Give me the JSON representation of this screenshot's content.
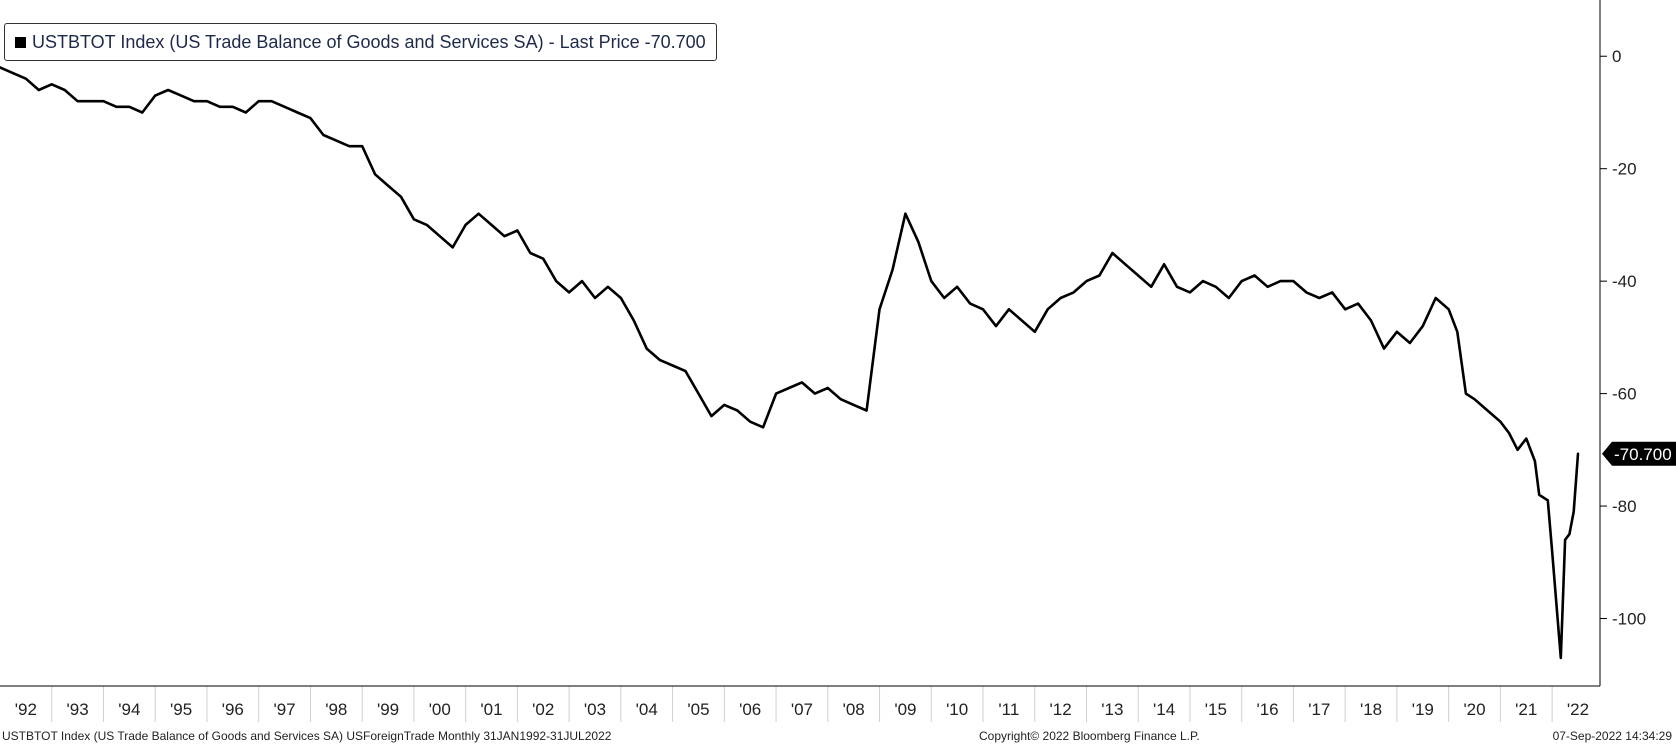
{
  "legend": {
    "series_label": "USTBTOT Index (US Trade Balance of Goods and Services SA) - Last Price -70.700"
  },
  "footer": {
    "left": "USTBTOT Index (US Trade Balance of Goods and Services SA) USForeignTrade  Monthly 31JAN1992-31JUL2022",
    "center": "Copyright© 2022 Bloomberg Finance L.P.",
    "right": "07-Sep-2022 14:34:29"
  },
  "chart_data": {
    "type": "line",
    "title": "",
    "xlabel": "",
    "ylabel": "",
    "ylim": [
      -112,
      10
    ],
    "yticks": [
      0,
      -20,
      -40,
      -60,
      -80,
      -100
    ],
    "ytick_labels": [
      "0",
      "-20",
      "-40",
      "-60",
      "-80",
      "-100"
    ],
    "x_start": "1992-01",
    "x_end": "2022-07",
    "xtick_labels": [
      "'92",
      "'93",
      "'94",
      "'95",
      "'96",
      "'97",
      "'98",
      "'99",
      "'00",
      "'01",
      "'02",
      "'03",
      "'04",
      "'05",
      "'06",
      "'07",
      "'08",
      "'09",
      "'10",
      "'11",
      "'12",
      "'13",
      "'14",
      "'15",
      "'16",
      "'17",
      "'18",
      "'19",
      "'20",
      "'21",
      "'22"
    ],
    "last_value_label": "-70.700",
    "line_color": "#000000",
    "grid": false,
    "series": [
      {
        "name": "USTBTOT Index",
        "x": [
          "1992-01",
          "1992-04",
          "1992-07",
          "1992-10",
          "1993-01",
          "1993-04",
          "1993-07",
          "1993-10",
          "1994-01",
          "1994-04",
          "1994-07",
          "1994-10",
          "1995-01",
          "1995-04",
          "1995-07",
          "1995-10",
          "1996-01",
          "1996-04",
          "1996-07",
          "1996-10",
          "1997-01",
          "1997-04",
          "1997-07",
          "1997-10",
          "1998-01",
          "1998-04",
          "1998-07",
          "1998-10",
          "1999-01",
          "1999-04",
          "1999-07",
          "1999-10",
          "2000-01",
          "2000-04",
          "2000-07",
          "2000-10",
          "2001-01",
          "2001-04",
          "2001-07",
          "2001-10",
          "2002-01",
          "2002-04",
          "2002-07",
          "2002-10",
          "2003-01",
          "2003-04",
          "2003-07",
          "2003-10",
          "2004-01",
          "2004-04",
          "2004-07",
          "2004-10",
          "2005-01",
          "2005-04",
          "2005-07",
          "2005-10",
          "2006-01",
          "2006-04",
          "2006-07",
          "2006-10",
          "2007-01",
          "2007-04",
          "2007-07",
          "2007-10",
          "2008-01",
          "2008-04",
          "2008-07",
          "2008-10",
          "2009-01",
          "2009-04",
          "2009-07",
          "2009-10",
          "2010-01",
          "2010-04",
          "2010-07",
          "2010-10",
          "2011-01",
          "2011-04",
          "2011-07",
          "2011-10",
          "2012-01",
          "2012-04",
          "2012-07",
          "2012-10",
          "2013-01",
          "2013-04",
          "2013-07",
          "2013-10",
          "2014-01",
          "2014-04",
          "2014-07",
          "2014-10",
          "2015-01",
          "2015-04",
          "2015-07",
          "2015-10",
          "2016-01",
          "2016-04",
          "2016-07",
          "2016-10",
          "2017-01",
          "2017-04",
          "2017-07",
          "2017-10",
          "2018-01",
          "2018-04",
          "2018-07",
          "2018-10",
          "2019-01",
          "2019-04",
          "2019-07",
          "2019-10",
          "2020-01",
          "2020-03",
          "2020-05",
          "2020-07",
          "2020-10",
          "2021-01",
          "2021-03",
          "2021-05",
          "2021-07",
          "2021-09",
          "2021-10",
          "2021-12",
          "2022-01",
          "2022-03",
          "2022-04",
          "2022-05",
          "2022-06",
          "2022-07"
        ],
        "values": [
          -2,
          -3,
          -4,
          -6,
          -5,
          -6,
          -8,
          -8,
          -8,
          -9,
          -9,
          -10,
          -7,
          -6,
          -7,
          -8,
          -8,
          -9,
          -9,
          -10,
          -8,
          -8,
          -9,
          -10,
          -11,
          -14,
          -15,
          -16,
          -16,
          -21,
          -23,
          -25,
          -29,
          -30,
          -32,
          -34,
          -30,
          -28,
          -30,
          -32,
          -31,
          -35,
          -36,
          -40,
          -42,
          -40,
          -43,
          -41,
          -43,
          -47,
          -52,
          -54,
          -55,
          -56,
          -60,
          -64,
          -62,
          -63,
          -65,
          -66,
          -60,
          -59,
          -58,
          -60,
          -59,
          -61,
          -62,
          -63,
          -45,
          -38,
          -28,
          -33,
          -40,
          -43,
          -41,
          -44,
          -45,
          -48,
          -45,
          -47,
          -49,
          -45,
          -43,
          -42,
          -40,
          -39,
          -35,
          -37,
          -39,
          -41,
          -37,
          -41,
          -42,
          -40,
          -41,
          -43,
          -40,
          -39,
          -41,
          -40,
          -40,
          -42,
          -43,
          -42,
          -45,
          -44,
          -47,
          -52,
          -49,
          -51,
          -48,
          -43,
          -45,
          -49,
          -60,
          -61,
          -63,
          -65,
          -67,
          -70,
          -68,
          -72,
          -78,
          -79,
          -88,
          -107,
          -86,
          -85,
          -81,
          -70.7
        ]
      }
    ]
  }
}
